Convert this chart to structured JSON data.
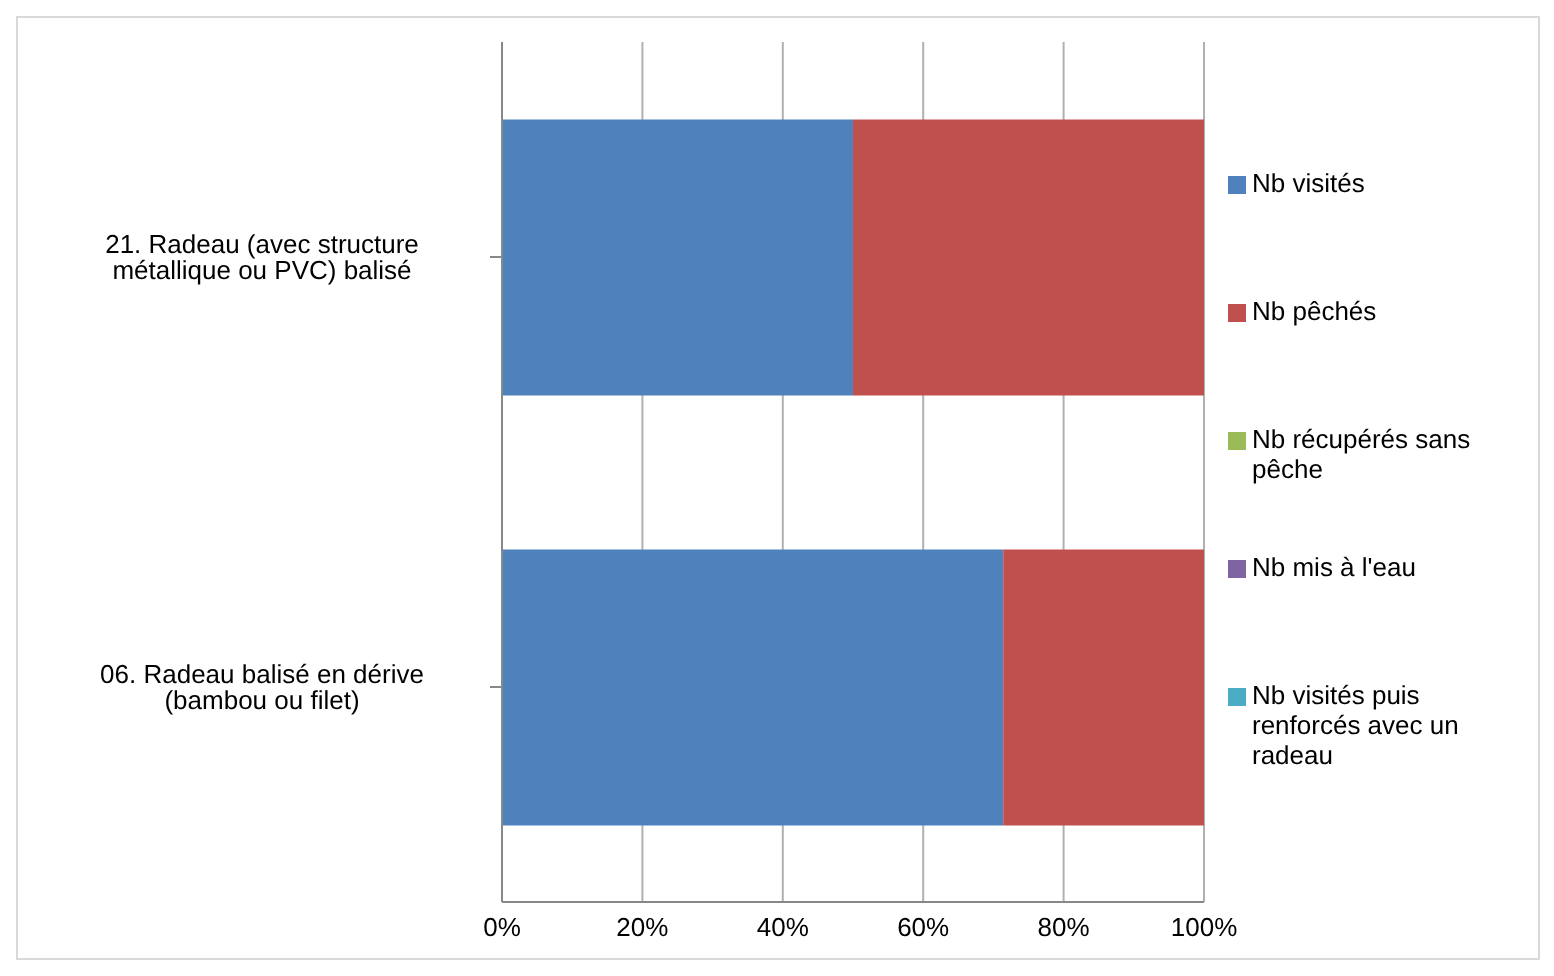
{
  "chart_data": {
    "type": "bar",
    "orientation": "horizontal",
    "stacked": true,
    "categories": [
      "21. Radeau (avec structure métallique ou PVC) balisé",
      "06. Radeau balisé en dérive (bambou ou filet)"
    ],
    "series": [
      {
        "name": "Nb visités",
        "color": "#4f81bd",
        "values": [
          50,
          71.4
        ]
      },
      {
        "name": "Nb pêchés",
        "color": "#c0504d",
        "values": [
          50,
          28.6
        ]
      },
      {
        "name": "Nb récupérés sans pêche",
        "color": "#9bbb59",
        "values": [
          0,
          0
        ]
      },
      {
        "name": "Nb mis à l'eau",
        "color": "#8064a2",
        "values": [
          0,
          0
        ]
      },
      {
        "name": "Nb visités puis renforcés avec un radeau",
        "color": "#4bacc6",
        "values": [
          0,
          0
        ]
      }
    ],
    "xlim": [
      0,
      100
    ],
    "xticks": [
      {
        "value": 0,
        "label": "0%"
      },
      {
        "value": 20,
        "label": "20%"
      },
      {
        "value": 40,
        "label": "40%"
      },
      {
        "value": 60,
        "label": "60%"
      },
      {
        "value": 80,
        "label": "80%"
      },
      {
        "value": 100,
        "label": "100%"
      }
    ],
    "grid": "x",
    "legend": "right"
  }
}
